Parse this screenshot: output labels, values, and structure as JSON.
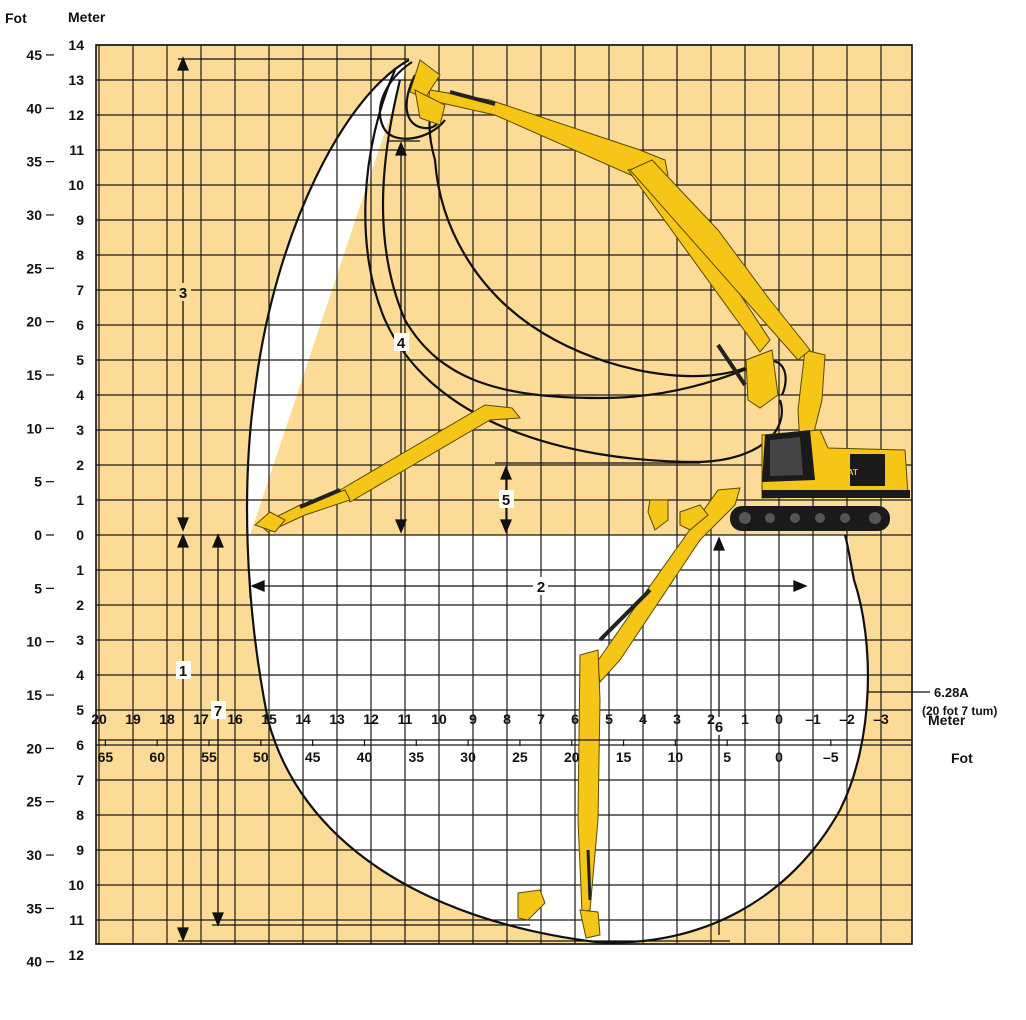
{
  "units": {
    "left_feet_header": "Fot",
    "left_meter_header": "Meter",
    "bottom_meter_label": "Meter",
    "bottom_feet_label": "Fot"
  },
  "y_axis": {
    "meter_ticks_above": [
      "14",
      "13",
      "12",
      "11",
      "10",
      "9",
      "8",
      "7",
      "6",
      "5",
      "4",
      "3",
      "2",
      "1",
      "0"
    ],
    "meter_ticks_below": [
      "1",
      "2",
      "3",
      "4",
      "5",
      "6",
      "7",
      "8",
      "9",
      "10",
      "11",
      "12"
    ],
    "feet_ticks_above": [
      "45",
      "40",
      "35",
      "30",
      "25",
      "20",
      "15",
      "10",
      "5",
      "0"
    ],
    "feet_ticks_below": [
      "5",
      "10",
      "15",
      "20",
      "25",
      "30",
      "35",
      "40"
    ]
  },
  "x_axis": {
    "meter_ticks": [
      "20",
      "19",
      "18",
      "17",
      "16",
      "15",
      "14",
      "13",
      "12",
      "11",
      "10",
      "9",
      "8",
      "7",
      "6",
      "5",
      "4",
      "3",
      "2",
      "1",
      "0",
      "–1",
      "–2",
      "–3"
    ],
    "feet_ticks": [
      "65",
      "60",
      "55",
      "50",
      "45",
      "40",
      "35",
      "30",
      "25",
      "20",
      "15",
      "10",
      "5",
      "0",
      "–5"
    ]
  },
  "dimension_labels": [
    "1",
    "2",
    "3",
    "4",
    "5",
    "6",
    "7"
  ],
  "callout": {
    "line1": "6.28A",
    "line2": "(20 fot 7 tum)"
  },
  "machine": {
    "brand_mark": "CAT",
    "body_color": "#F5C518",
    "stripe_color": "#1a1a1a"
  },
  "colors": {
    "background_fill": "#FBDB96",
    "grid_line": "#1a1a1a",
    "envelope_fill": "#ffffff",
    "machine_yellow": "#F5C518"
  }
}
